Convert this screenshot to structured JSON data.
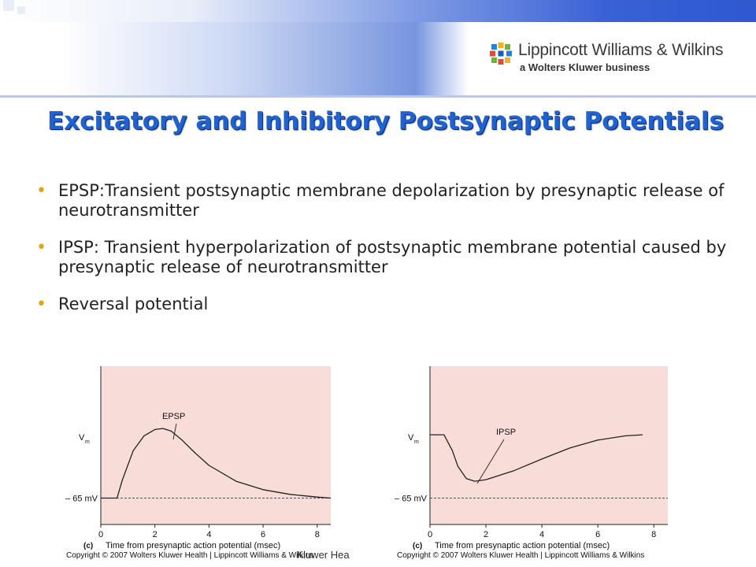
{
  "header": {
    "brand": "Lippincott Williams & Wilkins",
    "brand_sub": "a Wolters Kluwer business"
  },
  "slide": {
    "title": "Excitatory and Inhibitory Postsynaptic Potentials",
    "bullets": [
      "EPSP:Transient postsynaptic membrane depolarization by presynaptic release of neurotransmitter",
      "IPSP: Transient hyperpolarization of postsynaptic membrane potential caused by presynaptic release of neurotransmitter",
      "Reversal potential"
    ]
  },
  "footer": {
    "copyright_left": "Copyright © 2007 Wolters Kluwer Health | Lippincott Williams & Wilkins",
    "copyright_right": "Copyright © 2007 Wolters Kluwer Health | Lippincott Williams & Wilkins",
    "underlying_text": "Kluwer Hea"
  },
  "colors": {
    "title": "#1f63d3",
    "bullet": "#e3a21a",
    "plot_bg": "#f8dcd8"
  },
  "chart_data": [
    {
      "type": "line",
      "panel_label": "(c)",
      "annotation": "EPSP",
      "ylabel": "V",
      "ylabel_sub": "m",
      "ytick_label": "– 65 mV",
      "xlabel": "Time from presynaptic action potential (msec)",
      "xticks": [
        0,
        2,
        4,
        6,
        8
      ],
      "xlim": [
        0,
        8.5
      ],
      "baseline": -65,
      "ylim": [
        -70,
        -40
      ],
      "x": [
        0,
        0.6,
        0.8,
        1.2,
        1.6,
        2.0,
        2.3,
        2.6,
        3.0,
        3.5,
        4.0,
        5.0,
        6.0,
        7.0,
        8.0,
        8.5
      ],
      "y": [
        -65,
        -65,
        -61.5,
        -56,
        -53.2,
        -52,
        -51.8,
        -52.3,
        -54,
        -56.5,
        -58.8,
        -61.8,
        -63.4,
        -64.3,
        -64.8,
        -65
      ]
    },
    {
      "type": "line",
      "panel_label": "(c)",
      "annotation": "IPSP",
      "ylabel": "V",
      "ylabel_sub": "m",
      "ytick_label": "– 65 mV",
      "xlabel": "Time from presynaptic action potential (msec)",
      "xticks": [
        0,
        2,
        4,
        6,
        8
      ],
      "xlim": [
        0,
        8.5
      ],
      "baseline": -65,
      "ylim": [
        -70,
        -40
      ],
      "x": [
        0,
        0.5,
        0.8,
        1.0,
        1.3,
        1.6,
        2.0,
        3.0,
        4.0,
        5.0,
        6.0,
        7.0,
        7.6
      ],
      "y": [
        -53,
        -53,
        -56,
        -59,
        -61.3,
        -61.8,
        -61.5,
        -59.8,
        -57.6,
        -55.5,
        -54,
        -53.2,
        -53
      ]
    }
  ]
}
